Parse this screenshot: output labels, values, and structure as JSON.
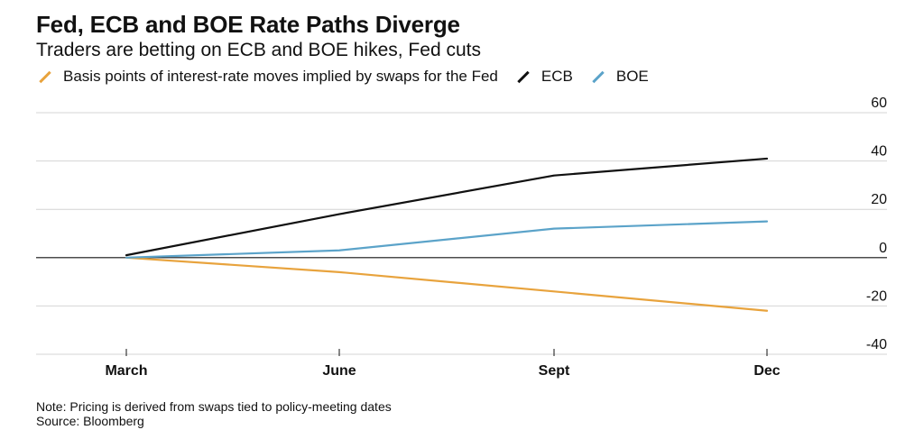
{
  "header": {
    "title": "Fed, ECB and BOE Rate Paths Diverge",
    "subtitle": "Traders are betting on ECB and BOE hikes, Fed cuts"
  },
  "legend": {
    "items": [
      {
        "label": "Basis points of interest-rate moves implied by swaps for the Fed",
        "color": "#e8a33d"
      },
      {
        "label": "ECB",
        "color": "#111111"
      },
      {
        "label": "BOE",
        "color": "#5ba3c9"
      }
    ]
  },
  "footer": {
    "note": "Note: Pricing is derived from swaps tied to policy-meeting dates",
    "source": "Source: Bloomberg"
  },
  "chart_data": {
    "type": "line",
    "title": "Fed, ECB and BOE Rate Paths Diverge",
    "subtitle": "Traders are betting on ECB and BOE hikes, Fed cuts",
    "categories": [
      "March",
      "June",
      "Sept",
      "Dec"
    ],
    "y_ticks": [
      60,
      40,
      20,
      0,
      -20,
      -40
    ],
    "y_tick_labels": [
      "60",
      "40",
      "20",
      "0",
      "-20",
      "-40"
    ],
    "ylim": [
      -40,
      60
    ],
    "y_axis_side": "right",
    "grid": true,
    "legend_position": "top-left",
    "series": [
      {
        "name": "Fed",
        "color": "#e8a33d",
        "values": [
          0,
          -6,
          -14,
          -22
        ]
      },
      {
        "name": "ECB",
        "color": "#111111",
        "values": [
          1,
          18,
          34,
          41
        ]
      },
      {
        "name": "BOE",
        "color": "#5ba3c9",
        "values": [
          0,
          3,
          12,
          15
        ]
      }
    ]
  }
}
